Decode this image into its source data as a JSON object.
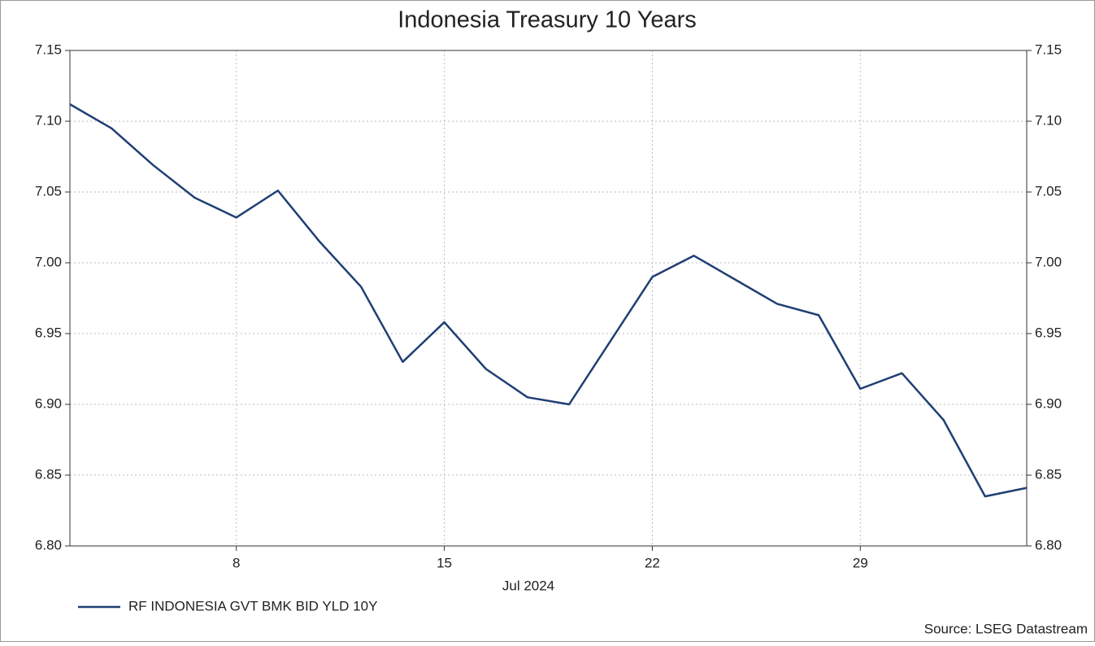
{
  "chart_data": {
    "type": "line",
    "title": "Indonesia Treasury 10 Years",
    "x_axis_label": "Jul 2024",
    "source": "Source: LSEG Datastream",
    "categories": [
      null,
      null,
      null,
      null,
      "8",
      null,
      null,
      null,
      null,
      "15",
      null,
      null,
      null,
      null,
      "22",
      null,
      null,
      null,
      null,
      "29",
      null,
      null,
      null,
      null
    ],
    "series": [
      {
        "name": "RF INDONESIA GVT BMK BID YLD 10Y",
        "color": "#1f3f73",
        "values": [
          7.112,
          7.095,
          7.069,
          7.046,
          7.032,
          7.051,
          7.015,
          6.983,
          6.93,
          6.958,
          6.925,
          6.905,
          6.9,
          6.945,
          6.99,
          7.005,
          6.988,
          6.971,
          6.963,
          6.911,
          6.922,
          6.889,
          6.835,
          6.841
        ]
      }
    ],
    "ylim": [
      6.8,
      7.15
    ],
    "yticks": [
      {
        "value": 6.8,
        "label": "6.80"
      },
      6.85,
      {
        "value": 6.9,
        "label": "6.90"
      },
      6.95,
      {
        "value": 7.0,
        "label": "7.00"
      },
      7.05,
      {
        "value": 7.1,
        "label": "7.10"
      },
      7.15
    ],
    "grid": true,
    "legend": "bottom-left"
  }
}
